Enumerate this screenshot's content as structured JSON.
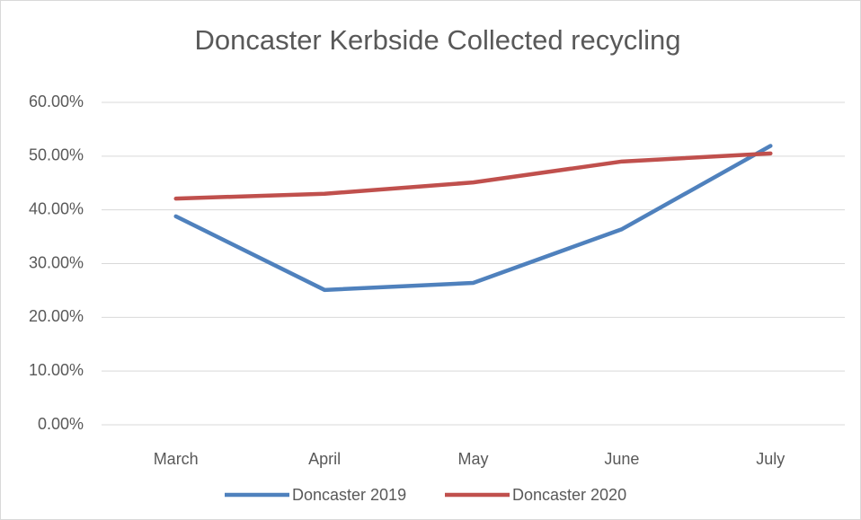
{
  "chart_data": {
    "type": "line",
    "title": "Doncaster Kerbside Collected recycling",
    "categories": [
      "March",
      "April",
      "May",
      "June",
      "July"
    ],
    "series": [
      {
        "name": "Doncaster 2019",
        "color": "#4f81bd",
        "values": [
          38.8,
          25.1,
          26.4,
          36.4,
          51.9
        ]
      },
      {
        "name": "Doncaster 2020",
        "color": "#c0504d",
        "values": [
          42.1,
          43.0,
          45.1,
          49.0,
          50.5
        ]
      }
    ],
    "ylim": [
      0,
      60
    ],
    "yticks": [
      {
        "value": 0,
        "label": "0.00%"
      },
      {
        "value": 10,
        "label": "10.00%"
      },
      {
        "value": 20,
        "label": "20.00%"
      },
      {
        "value": 30,
        "label": "30.00%"
      },
      {
        "value": 40,
        "label": "40.00%"
      },
      {
        "value": 50,
        "label": "50.00%"
      },
      {
        "value": 60,
        "label": "60.00%"
      }
    ],
    "grid": true,
    "legend": "bottom"
  }
}
